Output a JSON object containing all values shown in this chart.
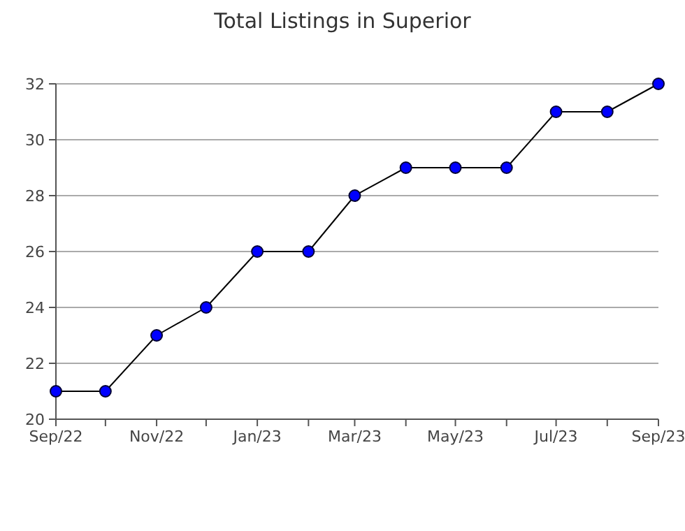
{
  "chart_data": {
    "type": "line",
    "title": "Total Listings in Superior",
    "x": [
      "2022-09",
      "2022-10",
      "2022-11",
      "2022-12",
      "2023-01",
      "2023-02",
      "2023-03",
      "2023-04",
      "2023-05",
      "2023-06",
      "2023-07",
      "2023-08",
      "2023-09"
    ],
    "series": [
      {
        "color": "#000000",
        "values": [
          21,
          21,
          23,
          24,
          26,
          26,
          28,
          29,
          29,
          29,
          31,
          31,
          32
        ]
      }
    ],
    "marker": "circle",
    "line_style": "solid",
    "grid": "y",
    "xlim": [
      "2022-09",
      "2023-09"
    ],
    "xticks": [
      {
        "value": "2022-09",
        "label": "Sep/22"
      },
      {
        "value": "2022-10",
        "label": null
      },
      {
        "value": "2022-11",
        "label": "Nov/22"
      },
      {
        "value": "2022-12",
        "label": null
      },
      {
        "value": "2023-01",
        "label": "Jan/23"
      },
      {
        "value": "2023-02",
        "label": null
      },
      {
        "value": "2023-03",
        "label": "Mar/23"
      },
      {
        "value": "2023-04",
        "label": null
      },
      {
        "value": "2023-05",
        "label": "May/23"
      },
      {
        "value": "2023-06",
        "label": null
      },
      {
        "value": "2023-07",
        "label": "Jul/23"
      },
      {
        "value": "2023-08",
        "label": null
      },
      {
        "value": "2023-09",
        "label": "Sep/23"
      }
    ],
    "ylim": [
      20,
      32
    ],
    "yticks": [
      20,
      22,
      24,
      26,
      28,
      30,
      32
    ]
  }
}
